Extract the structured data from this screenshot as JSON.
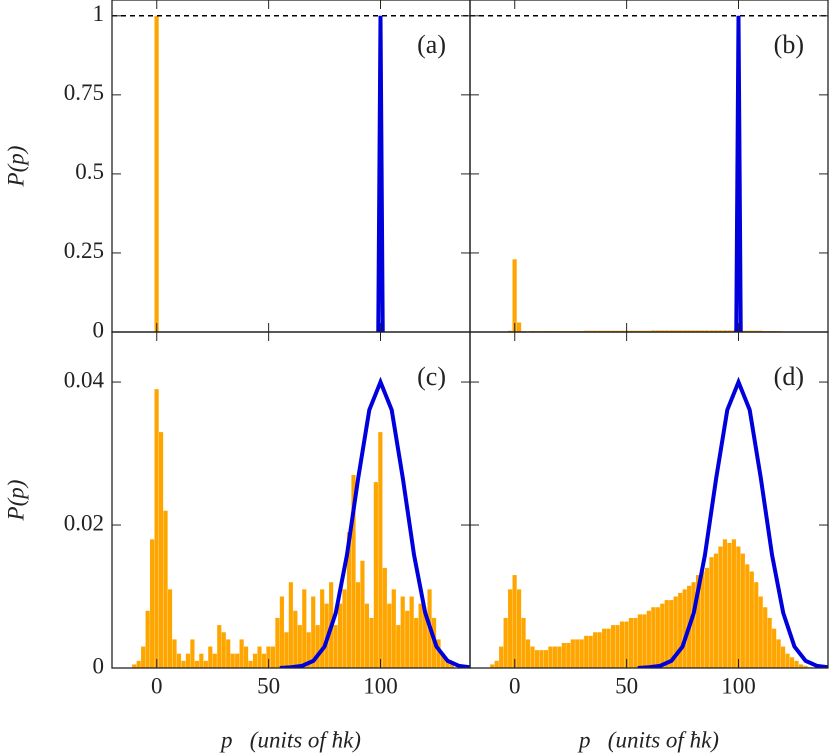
{
  "chart_data": [
    {
      "type": "histogram",
      "label": "(a)",
      "ylabel": "P(p)",
      "color": "#ffa500",
      "bins": [
        -1,
        1
      ],
      "values": [
        1
      ],
      "curve": {
        "color": "#0000dd",
        "x": [
          99,
          100,
          101
        ],
        "values": [
          0,
          1,
          0
        ]
      },
      "hline": 1,
      "xlim": [
        -20,
        140
      ],
      "ylim": [
        0,
        1.05
      ],
      "xticks": [
        0,
        50,
        100
      ],
      "yticks": [
        0,
        {
          "value": 0.25,
          "label": "0.25"
        },
        {
          "value": 0.5,
          "label": "0.5"
        },
        {
          "value": 0.75,
          "label": "0.75"
        },
        1
      ]
    },
    {
      "type": "histogram",
      "label": "(b)",
      "color": "#ffa500",
      "bins": [
        -11,
        -9,
        -7,
        -5,
        -3,
        -1,
        1,
        3,
        5,
        7,
        9,
        11,
        13,
        15,
        17,
        19,
        21,
        23,
        25,
        27,
        29,
        31,
        33,
        35,
        37,
        39,
        41,
        43,
        45,
        47,
        49,
        51,
        53,
        55,
        57,
        59,
        61,
        63,
        65,
        67,
        69,
        71,
        73,
        75,
        77,
        79,
        81,
        83,
        85,
        87,
        89,
        91,
        93,
        95,
        97,
        99,
        101,
        103,
        105,
        107,
        109,
        111,
        113,
        115,
        117,
        119,
        121,
        123,
        125,
        127,
        129,
        131,
        133,
        135
      ],
      "values": [
        0,
        0,
        0,
        0,
        0.004,
        0.23,
        0.03,
        0.003,
        0.002,
        0.003,
        0.003,
        0.003,
        0.003,
        0.003,
        0.003,
        0.003,
        0.003,
        0.003,
        0.003,
        0.003,
        0.003,
        0.004,
        0.004,
        0.004,
        0.004,
        0.004,
        0.004,
        0.004,
        0.004,
        0.004,
        0.004,
        0.004,
        0.004,
        0.004,
        0.004,
        0.004,
        0.005,
        0.005,
        0.005,
        0.005,
        0.005,
        0.005,
        0.005,
        0.005,
        0.005,
        0.005,
        0.005,
        0.005,
        0.005,
        0.005,
        0.005,
        0.005,
        0.005,
        0.005,
        0.005,
        0.004,
        0.004,
        0.004,
        0.004,
        0.004,
        0.004,
        0.003,
        0.003,
        0.003,
        0.003,
        0.002,
        0.001,
        0,
        0,
        0,
        0,
        0,
        0
      ],
      "curve": {
        "color": "#0000dd",
        "x": [
          99,
          100,
          101
        ],
        "values": [
          0,
          1,
          0
        ]
      },
      "hline": 1,
      "xlim": [
        -20,
        140
      ],
      "ylim": [
        0,
        1.05
      ],
      "xticks": [
        0,
        50,
        100
      ],
      "yticks": [
        0,
        0.25,
        0.5,
        0.75,
        1
      ]
    },
    {
      "type": "histogram",
      "label": "(c)",
      "ylabel": "P(p)",
      "xlabel": "p   (units of ħk)",
      "color": "#ffa500",
      "bins": [
        -11,
        -9,
        -7,
        -5,
        -3,
        -1,
        1,
        3,
        5,
        7,
        9,
        11,
        13,
        15,
        17,
        19,
        21,
        23,
        25,
        27,
        29,
        31,
        33,
        35,
        37,
        39,
        41,
        43,
        45,
        47,
        49,
        51,
        53,
        55,
        57,
        59,
        61,
        63,
        65,
        67,
        69,
        71,
        73,
        75,
        77,
        79,
        81,
        83,
        85,
        87,
        89,
        91,
        93,
        95,
        97,
        99,
        101,
        103,
        105,
        107,
        109,
        111,
        113,
        115,
        117,
        119,
        121,
        123,
        125,
        127,
        129,
        131,
        133,
        135
      ],
      "values": [
        0.0005,
        0.001,
        0.003,
        0.008,
        0.018,
        0.039,
        0.033,
        0.022,
        0.011,
        0.004,
        0.002,
        0.001,
        0.002,
        0.004,
        0.001,
        0.002,
        0.001,
        0.003,
        0.002,
        0.006,
        0.005,
        0.004,
        0.002,
        0.002,
        0.004,
        0.003,
        0.001,
        0.002,
        0.003,
        0.002,
        0.003,
        0.003,
        0.007,
        0.01,
        0.005,
        0.012,
        0.008,
        0.006,
        0.011,
        0.005,
        0.01,
        0.006,
        0.011,
        0.009,
        0.012,
        0.006,
        0.009,
        0.011,
        0.019,
        0.027,
        0.012,
        0.015,
        0.009,
        0.007,
        0.026,
        0.033,
        0.014,
        0.009,
        0.011,
        0.006,
        0.01,
        0.008,
        0.01,
        0.007,
        0.009,
        0.008,
        0.011,
        0.007,
        0.004,
        0.002,
        0.001,
        0.0005,
        0
      ],
      "curve": {
        "color": "#0000dd",
        "x": [
          55,
          60,
          65,
          70,
          75,
          80,
          85,
          90,
          95,
          100,
          105,
          110,
          115,
          120,
          125,
          130,
          135,
          140
        ],
        "values": [
          0,
          0.0001,
          0.0003,
          0.001,
          0.003,
          0.0077,
          0.0158,
          0.0265,
          0.0361,
          0.04,
          0.0361,
          0.0265,
          0.0158,
          0.0077,
          0.003,
          0.001,
          0.0003,
          0.0001
        ]
      },
      "xlim": [
        -20,
        140
      ],
      "ylim": [
        0,
        0.047
      ],
      "xticks": [
        0,
        50,
        100
      ],
      "yticks": [
        0,
        {
          "value": 0.02,
          "label": "0.02"
        },
        {
          "value": 0.04,
          "label": "0.04"
        }
      ]
    },
    {
      "type": "histogram",
      "label": "(d)",
      "xlabel": "p   (units of ħk)",
      "color": "#ffa500",
      "bins": [
        -11,
        -9,
        -7,
        -5,
        -3,
        -1,
        1,
        3,
        5,
        7,
        9,
        11,
        13,
        15,
        17,
        19,
        21,
        23,
        25,
        27,
        29,
        31,
        33,
        35,
        37,
        39,
        41,
        43,
        45,
        47,
        49,
        51,
        53,
        55,
        57,
        59,
        61,
        63,
        65,
        67,
        69,
        71,
        73,
        75,
        77,
        79,
        81,
        83,
        85,
        87,
        89,
        91,
        93,
        95,
        97,
        99,
        101,
        103,
        105,
        107,
        109,
        111,
        113,
        115,
        117,
        119,
        121,
        123,
        125,
        127,
        129,
        131,
        133,
        135
      ],
      "values": [
        0.0005,
        0.001,
        0.003,
        0.007,
        0.011,
        0.013,
        0.011,
        0.007,
        0.004,
        0.003,
        0.0025,
        0.0025,
        0.0025,
        0.003,
        0.003,
        0.003,
        0.0035,
        0.0035,
        0.004,
        0.004,
        0.004,
        0.0045,
        0.0045,
        0.005,
        0.005,
        0.0055,
        0.0055,
        0.006,
        0.006,
        0.0065,
        0.0065,
        0.007,
        0.007,
        0.0075,
        0.0075,
        0.008,
        0.0085,
        0.0085,
        0.009,
        0.0095,
        0.0095,
        0.01,
        0.0105,
        0.011,
        0.0115,
        0.012,
        0.013,
        0.0135,
        0.014,
        0.0155,
        0.016,
        0.017,
        0.018,
        0.0175,
        0.018,
        0.017,
        0.016,
        0.0145,
        0.0135,
        0.012,
        0.01,
        0.0085,
        0.007,
        0.0055,
        0.004,
        0.003,
        0.002,
        0.0015,
        0.001,
        0.0005,
        0.0003,
        0.0001,
        0
      ],
      "curve": {
        "color": "#0000dd",
        "x": [
          55,
          60,
          65,
          70,
          75,
          80,
          85,
          90,
          95,
          100,
          105,
          110,
          115,
          120,
          125,
          130,
          135,
          140
        ],
        "values": [
          0,
          0.0001,
          0.0003,
          0.001,
          0.003,
          0.0077,
          0.0158,
          0.0265,
          0.0361,
          0.04,
          0.0361,
          0.0265,
          0.0158,
          0.0077,
          0.003,
          0.001,
          0.0003,
          0.0001
        ]
      },
      "xlim": [
        -20,
        140
      ],
      "ylim": [
        0,
        0.047
      ],
      "xticks": [
        0,
        50,
        100
      ],
      "yticks": [
        0,
        0.02,
        0.04
      ]
    }
  ]
}
